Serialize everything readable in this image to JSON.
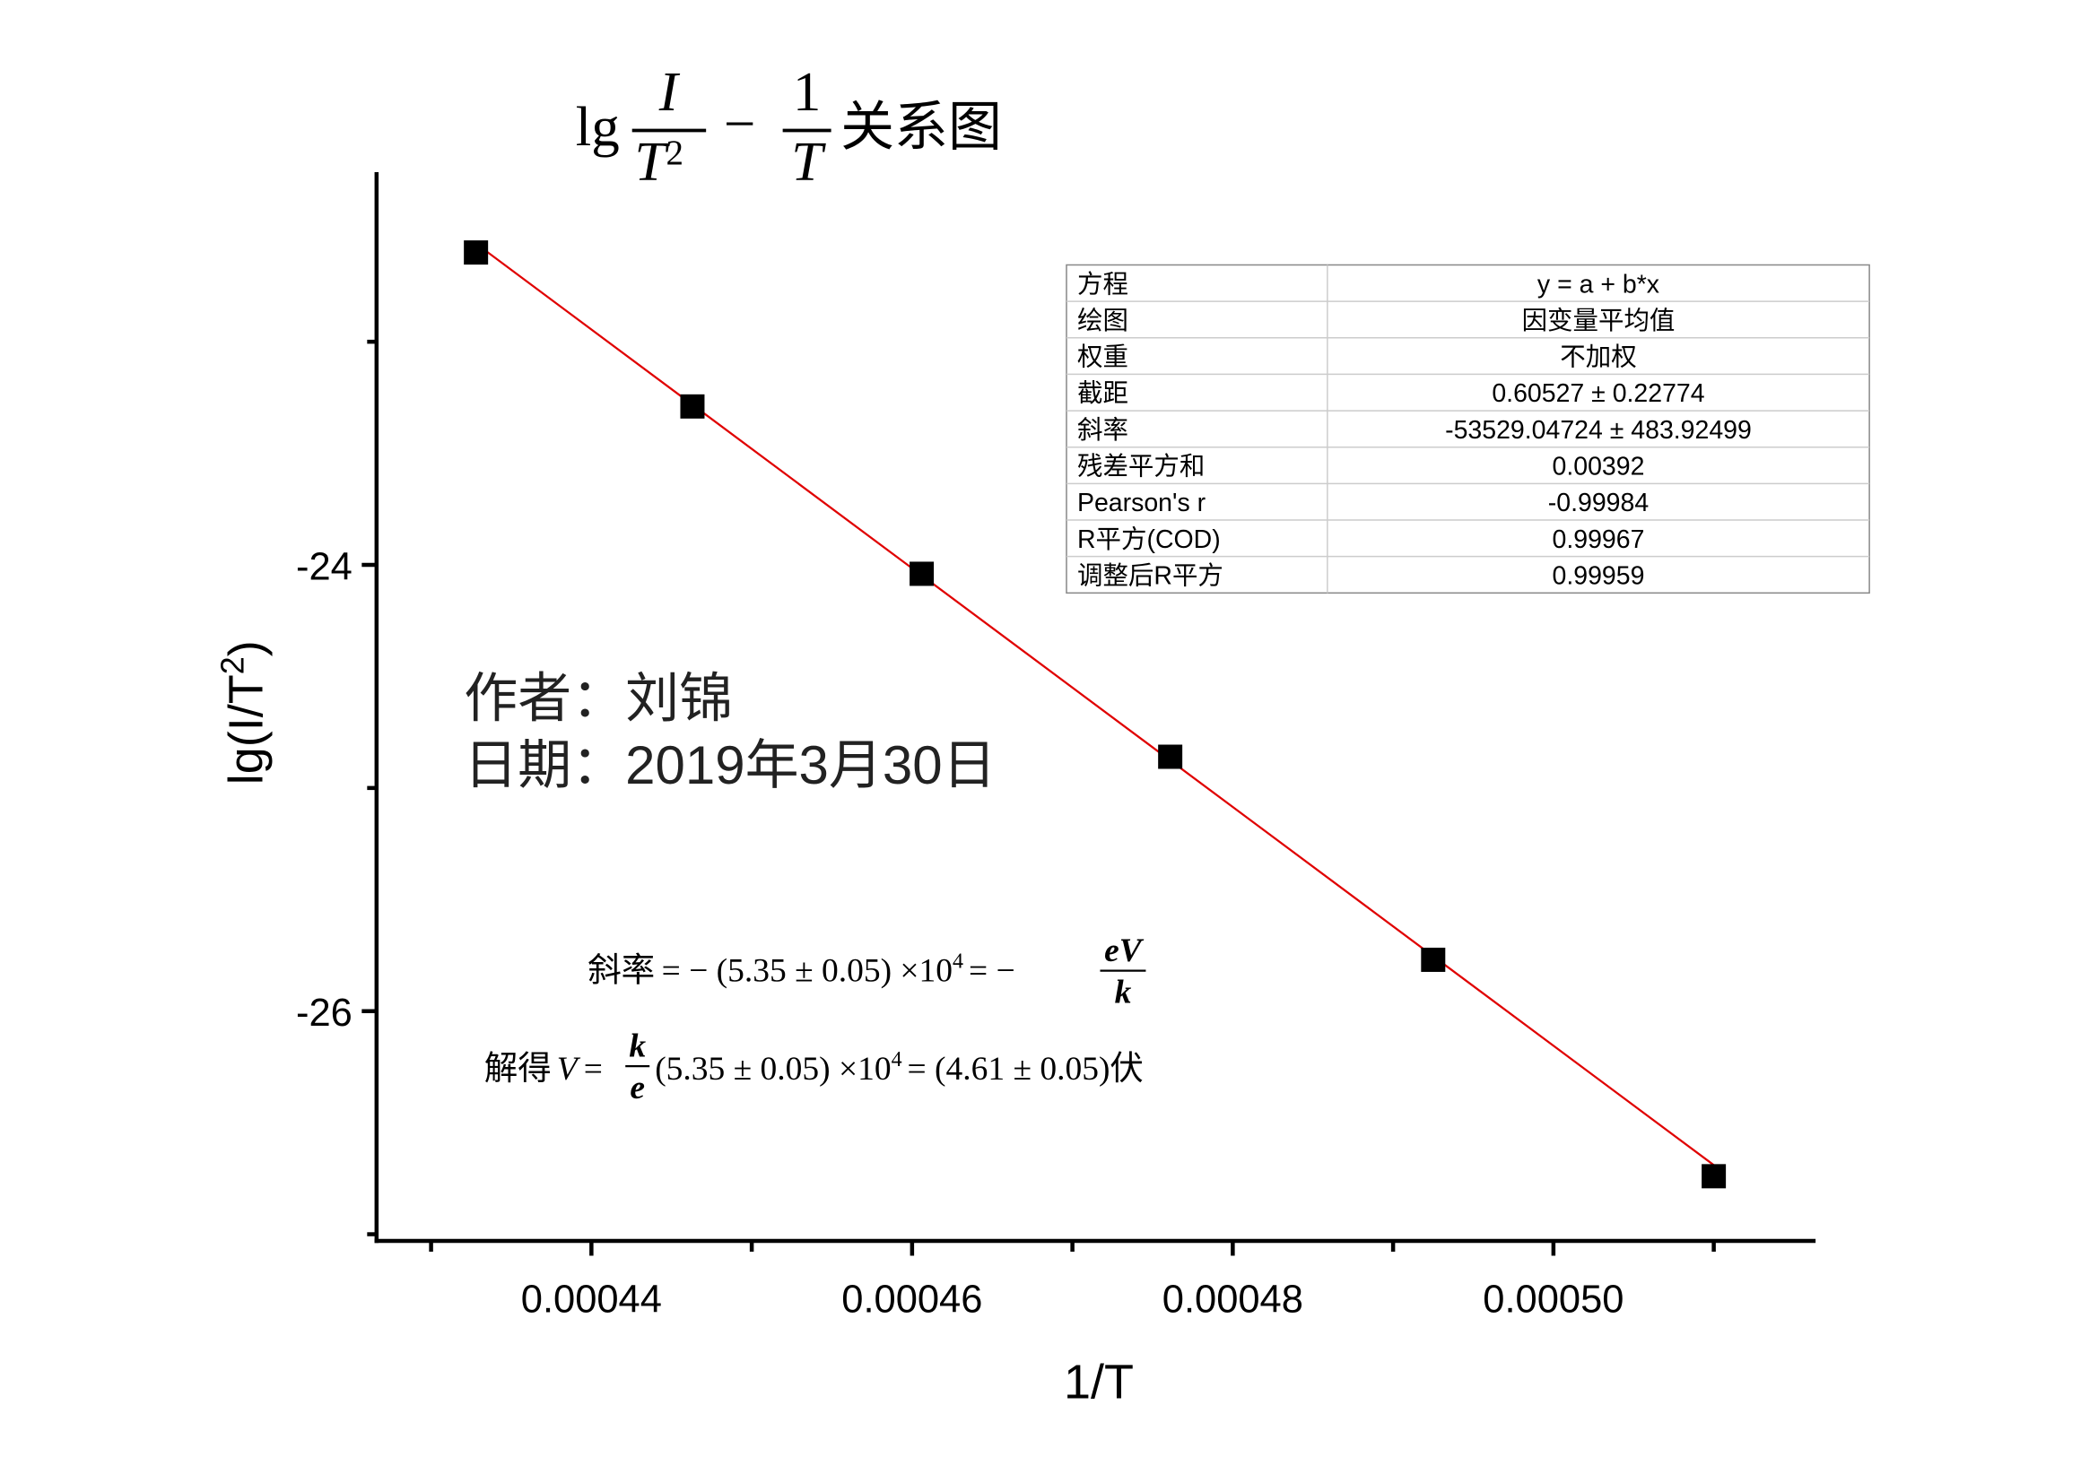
{
  "chart_data": {
    "type": "scatter",
    "title": {
      "prefix": "lg",
      "num1": "I",
      "den1": "T",
      "den1_sup": "2",
      "minus": "−",
      "num2": "1",
      "den2": "T",
      "suffix": "关系图"
    },
    "xlabel": "1/T",
    "ylabel": {
      "text": "lg(I/T",
      "sup": "2",
      "close": ")"
    },
    "xlim": [
      0.0004266,
      0.00051635
    ],
    "xticks": [
      0.00044,
      0.00046,
      0.00048,
      {
        "value": 0.0005,
        "label": "0.00050"
      }
    ],
    "xminor": [
      0.00043,
      0.00045,
      0.00047,
      0.00049,
      0.00051
    ],
    "ylim": [
      -27.03,
      -22.24
    ],
    "yticks": [
      -24,
      -26
    ],
    "yminor": [
      -23,
      -25,
      -27
    ],
    "points": {
      "color": "#000000",
      "x": [
        0.0004328,
        0.0004463,
        0.0004606,
        0.0004761,
        0.0004925,
        0.00051
      ],
      "values": [
        -22.6,
        -23.29,
        -24.04,
        -24.86,
        -25.77,
        -26.74
      ]
    },
    "fit_line": {
      "color": "#e00000",
      "x": [
        0.0004328,
        0.00051
      ],
      "values": [
        -22.56,
        -26.69
      ]
    },
    "fit_table": {
      "rows": [
        [
          "方程",
          "y = a + b*x"
        ],
        [
          "绘图",
          "因变量平均值"
        ],
        [
          "权重",
          "不加权"
        ],
        [
          "截距",
          "0.60527 ± 0.22774"
        ],
        [
          "斜率",
          "-53529.04724 ± 483.92499"
        ],
        [
          "残差平方和",
          "0.00392"
        ],
        [
          "Pearson's r",
          "-0.99984"
        ],
        [
          "R平方(COD)",
          "0.99967"
        ],
        [
          "调整后R平方",
          "0.99959"
        ]
      ]
    },
    "annotations": {
      "author": "作者：刘锦",
      "date": "日期：2019年3月30日",
      "formula1": {
        "lead": "斜率",
        "mid": "= − (5.35 ± 0.05) ×10",
        "exp": "4",
        "eq": "= −",
        "frac_num": "eV",
        "frac_den": "k"
      },
      "formula2": {
        "lead": "解得",
        "var": "V",
        "eqs": "=",
        "frac_num": "k",
        "frac_den": "e",
        "mid": "(5.35 ± 0.05) ×10",
        "exp": "4",
        "tail": "= (4.61 ± 0.05)伏"
      }
    }
  }
}
